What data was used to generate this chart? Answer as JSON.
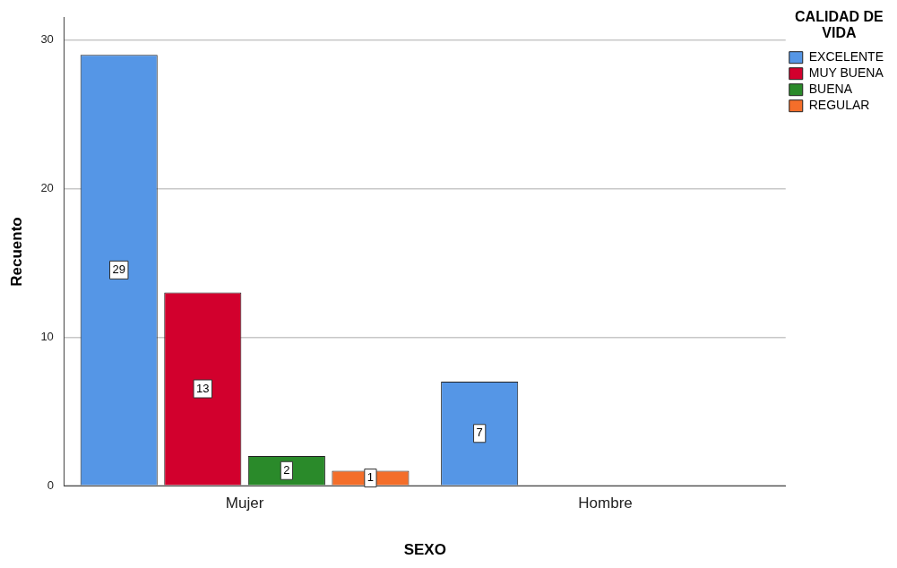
{
  "chart_data": {
    "type": "bar",
    "xlabel": "SEXO",
    "ylabel": "Recuento",
    "legend_title": "CALIDAD DE VIDA",
    "categories": [
      "Mujer",
      "Hombre"
    ],
    "series": [
      {
        "name": "EXCELENTE",
        "color": "#5596e6",
        "values": [
          29,
          7
        ]
      },
      {
        "name": "MUY BUENA",
        "color": "#d2002d",
        "values": [
          13,
          null
        ]
      },
      {
        "name": "BUENA",
        "color": "#2a8a2a",
        "values": [
          2,
          null
        ]
      },
      {
        "name": "REGULAR",
        "color": "#f46e2a",
        "values": [
          1,
          null
        ]
      }
    ],
    "ylim": [
      0,
      31.5
    ],
    "yticks": [
      0,
      10,
      20,
      30
    ],
    "grid": "y",
    "legend": "top right",
    "data_labels": true
  }
}
